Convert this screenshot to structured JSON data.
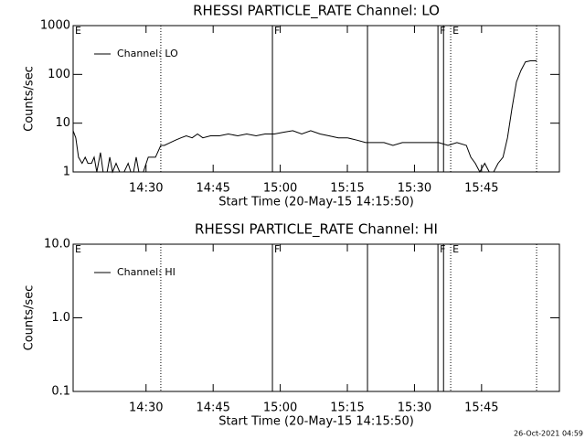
{
  "chart_data": [
    {
      "type": "line",
      "title": "RHESSI PARTICLE_RATE Channel: LO",
      "xlabel": "Start Time (20-May-15 14:15:50)",
      "ylabel": "Counts/sec",
      "log_y": true,
      "legend": "upper left",
      "xlim": [
        13.7,
        122.4
      ],
      "xticks": [
        {
          "value": 30,
          "label": "14:30"
        },
        {
          "value": 45,
          "label": "14:45"
        },
        {
          "value": 60,
          "label": "15:00"
        },
        {
          "value": 75,
          "label": "15:15"
        },
        {
          "value": 90,
          "label": "15:30"
        },
        {
          "value": 105,
          "label": "15:45"
        }
      ],
      "ylim": [
        1,
        1000
      ],
      "yticks": [
        1,
        10,
        100,
        1000
      ],
      "events": [
        {
          "x": 13.7,
          "label": "E"
        },
        {
          "x": 33.3,
          "style": "dotted"
        },
        {
          "x": 58.25,
          "style": "solid",
          "label": "F"
        },
        {
          "x": 79.5,
          "style": "solid"
        },
        {
          "x": 95.25,
          "style": "solid",
          "label": "F"
        },
        {
          "x": 96.5,
          "style": "solid"
        },
        {
          "x": 98.1,
          "style": "dotted",
          "label": "E"
        },
        {
          "x": 117.3,
          "style": "dotted"
        }
      ],
      "x": [
        13.7,
        14.3,
        14.9,
        15.7,
        16.4,
        17.0,
        17.8,
        18.4,
        19.0,
        19.8,
        20.4,
        21.3,
        21.9,
        22.5,
        23.3,
        24.1,
        25.1,
        26.0,
        26.6,
        27.2,
        27.8,
        28.4,
        29.4,
        30.5,
        32.1,
        33.3,
        34.1,
        35.4,
        36.6,
        37.8,
        39.0,
        40.3,
        41.5,
        42.7,
        44.4,
        46.4,
        48.4,
        50.5,
        52.5,
        54.6,
        56.6,
        58.7,
        60.7,
        62.8,
        64.8,
        66.8,
        68.9,
        70.9,
        73.0,
        75.0,
        77.1,
        79.1,
        81.1,
        83.2,
        85.2,
        87.3,
        89.3,
        91.3,
        93.4,
        95.4,
        97.5,
        99.5,
        101.6,
        102.6,
        103.6,
        104.6,
        105.7,
        106.7,
        107.7,
        108.7,
        109.8,
        110.8,
        111.8,
        112.8,
        113.8,
        114.8,
        115.9,
        117.3
      ],
      "series": [
        {
          "name": "Channel: LO",
          "color": "#000000",
          "values": [
            7,
            5,
            2,
            1.5,
            2,
            1.5,
            1.5,
            2,
            1,
            2.5,
            1,
            1,
            2,
            1,
            1.5,
            1,
            1,
            1.5,
            1,
            1,
            2,
            1,
            1,
            2,
            2,
            3.5,
            3.5,
            4,
            4.5,
            5,
            5.5,
            5,
            6,
            5,
            5.5,
            5.5,
            6,
            5.5,
            6,
            5.5,
            6,
            6,
            6.5,
            7,
            6,
            7,
            6,
            5.5,
            5,
            5,
            4.5,
            4,
            4,
            4,
            3.5,
            4,
            4,
            4,
            4,
            4,
            3.5,
            4,
            3.5,
            2,
            1.5,
            1,
            1.5,
            1,
            1,
            1.5,
            2,
            5,
            20,
            70,
            120,
            180,
            190,
            190
          ]
        }
      ]
    },
    {
      "type": "line",
      "title": "RHESSI PARTICLE_RATE Channel: HI",
      "xlabel": "Start Time (20-May-15 14:15:50)",
      "ylabel": "Counts/sec",
      "log_y": true,
      "legend": "upper left",
      "xlim": [
        13.7,
        122.4
      ],
      "xticks": [
        {
          "value": 30,
          "label": "14:30"
        },
        {
          "value": 45,
          "label": "14:45"
        },
        {
          "value": 60,
          "label": "15:00"
        },
        {
          "value": 75,
          "label": "15:15"
        },
        {
          "value": 90,
          "label": "15:30"
        },
        {
          "value": 105,
          "label": "15:45"
        }
      ],
      "ylim": [
        0.1,
        10
      ],
      "yticks": [
        0.1,
        {
          "value": 1,
          "label": "1.0"
        },
        {
          "value": 10,
          "label": "10.0"
        }
      ],
      "events": [
        {
          "x": 13.7,
          "label": "E"
        },
        {
          "x": 33.3,
          "style": "dotted"
        },
        {
          "x": 58.25,
          "style": "solid",
          "label": "F"
        },
        {
          "x": 79.5,
          "style": "solid"
        },
        {
          "x": 95.25,
          "style": "solid",
          "label": "F"
        },
        {
          "x": 96.5,
          "style": "solid"
        },
        {
          "x": 98.1,
          "style": "dotted",
          "label": "E"
        },
        {
          "x": 117.3,
          "style": "dotted"
        }
      ],
      "x": [],
      "series": [
        {
          "name": "Channel: HI",
          "color": "#000000",
          "values": []
        }
      ]
    }
  ],
  "footer": "26-Oct-2021 04:59"
}
